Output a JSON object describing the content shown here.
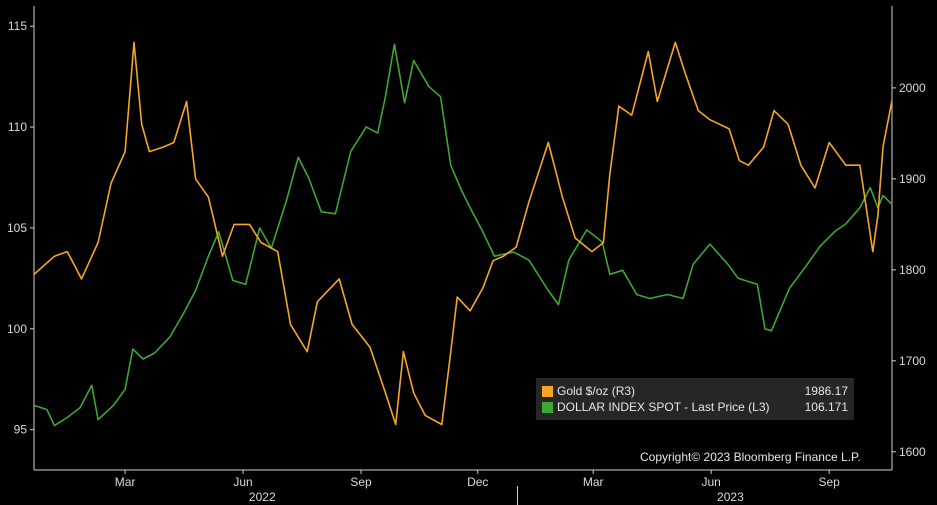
{
  "chart_data": {
    "type": "line",
    "x_start": "2021-12-20",
    "x_end": "2023-10-20",
    "left_axis": {
      "ylim": [
        93,
        116
      ],
      "ticks": [
        95,
        100,
        105,
        110,
        115
      ]
    },
    "right_axis": {
      "ylim": [
        1580,
        2090
      ],
      "ticks": [
        1600,
        1700,
        1800,
        1900,
        2000
      ]
    },
    "x_ticks": [
      {
        "label": "Mar",
        "date": "2022-03-01"
      },
      {
        "label": "Jun",
        "date": "2022-06-01"
      },
      {
        "label": "Sep",
        "date": "2022-09-01"
      },
      {
        "label": "Dec",
        "date": "2022-12-01"
      },
      {
        "label": "Mar",
        "date": "2023-03-01"
      },
      {
        "label": "Jun",
        "date": "2023-06-01"
      },
      {
        "label": "Sep",
        "date": "2023-09-01"
      }
    ],
    "years": [
      {
        "label": "2022",
        "date": "2022-06-16"
      },
      {
        "label": "2023",
        "date": "2023-06-16"
      }
    ],
    "series": [
      {
        "name": "Gold $/oz (R3)",
        "last_value": "1986.17",
        "axis": "right",
        "color": "#f5a623",
        "points": [
          [
            "2021-12-20",
            1795
          ],
          [
            "2022-01-05",
            1815
          ],
          [
            "2022-01-15",
            1820
          ],
          [
            "2022-01-26",
            1790
          ],
          [
            "2022-02-08",
            1830
          ],
          [
            "2022-02-18",
            1895
          ],
          [
            "2022-03-01",
            1930
          ],
          [
            "2022-03-08",
            2050
          ],
          [
            "2022-03-14",
            1960
          ],
          [
            "2022-03-20",
            1930
          ],
          [
            "2022-03-31",
            1935
          ],
          [
            "2022-04-08",
            1940
          ],
          [
            "2022-04-18",
            1985
          ],
          [
            "2022-04-25",
            1900
          ],
          [
            "2022-05-05",
            1880
          ],
          [
            "2022-05-16",
            1815
          ],
          [
            "2022-05-25",
            1850
          ],
          [
            "2022-06-06",
            1850
          ],
          [
            "2022-06-15",
            1830
          ],
          [
            "2022-06-28",
            1820
          ],
          [
            "2022-07-08",
            1740
          ],
          [
            "2022-07-21",
            1710
          ],
          [
            "2022-07-29",
            1765
          ],
          [
            "2022-08-15",
            1790
          ],
          [
            "2022-08-25",
            1740
          ],
          [
            "2022-09-08",
            1715
          ],
          [
            "2022-09-20",
            1665
          ],
          [
            "2022-09-28",
            1630
          ],
          [
            "2022-10-04",
            1710
          ],
          [
            "2022-10-12",
            1665
          ],
          [
            "2022-10-21",
            1640
          ],
          [
            "2022-11-03",
            1630
          ],
          [
            "2022-11-10",
            1710
          ],
          [
            "2022-11-15",
            1770
          ],
          [
            "2022-11-25",
            1755
          ],
          [
            "2022-12-05",
            1780
          ],
          [
            "2022-12-13",
            1810
          ],
          [
            "2022-12-21",
            1815
          ],
          [
            "2022-12-31",
            1825
          ],
          [
            "2023-01-10",
            1875
          ],
          [
            "2023-01-25",
            1940
          ],
          [
            "2023-02-05",
            1880
          ],
          [
            "2023-02-15",
            1835
          ],
          [
            "2023-02-28",
            1820
          ],
          [
            "2023-03-09",
            1830
          ],
          [
            "2023-03-14",
            1905
          ],
          [
            "2023-03-21",
            1980
          ],
          [
            "2023-03-31",
            1970
          ],
          [
            "2023-04-13",
            2040
          ],
          [
            "2023-04-20",
            1985
          ],
          [
            "2023-05-04",
            2050
          ],
          [
            "2023-05-12",
            2015
          ],
          [
            "2023-05-22",
            1975
          ],
          [
            "2023-05-31",
            1965
          ],
          [
            "2023-06-15",
            1955
          ],
          [
            "2023-06-23",
            1920
          ],
          [
            "2023-06-30",
            1915
          ],
          [
            "2023-07-12",
            1935
          ],
          [
            "2023-07-20",
            1975
          ],
          [
            "2023-07-31",
            1960
          ],
          [
            "2023-08-10",
            1915
          ],
          [
            "2023-08-21",
            1890
          ],
          [
            "2023-09-01",
            1940
          ],
          [
            "2023-09-14",
            1915
          ],
          [
            "2023-09-25",
            1915
          ],
          [
            "2023-10-05",
            1820
          ],
          [
            "2023-10-09",
            1860
          ],
          [
            "2023-10-13",
            1935
          ],
          [
            "2023-10-20",
            1986.17
          ]
        ]
      },
      {
        "name": "DOLLAR INDEX SPOT - Last Price (L3)",
        "last_value": "106.171",
        "axis": "left",
        "color": "#3fa535",
        "points": [
          [
            "2021-12-20",
            96.2
          ],
          [
            "2021-12-30",
            96.0
          ],
          [
            "2022-01-05",
            95.2
          ],
          [
            "2022-01-15",
            95.6
          ],
          [
            "2022-01-25",
            96.1
          ],
          [
            "2022-02-03",
            97.2
          ],
          [
            "2022-02-08",
            95.5
          ],
          [
            "2022-02-20",
            96.2
          ],
          [
            "2022-03-01",
            97.0
          ],
          [
            "2022-03-07",
            99.0
          ],
          [
            "2022-03-15",
            98.5
          ],
          [
            "2022-03-24",
            98.8
          ],
          [
            "2022-04-05",
            99.6
          ],
          [
            "2022-04-15",
            100.7
          ],
          [
            "2022-04-25",
            101.9
          ],
          [
            "2022-05-05",
            103.6
          ],
          [
            "2022-05-13",
            104.8
          ],
          [
            "2022-05-24",
            102.4
          ],
          [
            "2022-06-03",
            102.2
          ],
          [
            "2022-06-14",
            105.0
          ],
          [
            "2022-06-23",
            104.0
          ],
          [
            "2022-07-05",
            106.4
          ],
          [
            "2022-07-14",
            108.5
          ],
          [
            "2022-07-22",
            107.5
          ],
          [
            "2022-08-01",
            105.8
          ],
          [
            "2022-08-12",
            105.7
          ],
          [
            "2022-08-24",
            108.8
          ],
          [
            "2022-09-05",
            110.0
          ],
          [
            "2022-09-14",
            109.7
          ],
          [
            "2022-09-20",
            111.5
          ],
          [
            "2022-09-27",
            114.1
          ],
          [
            "2022-10-05",
            111.2
          ],
          [
            "2022-10-12",
            113.3
          ],
          [
            "2022-10-24",
            112.0
          ],
          [
            "2022-11-02",
            111.5
          ],
          [
            "2022-11-10",
            108.1
          ],
          [
            "2022-11-18",
            106.9
          ],
          [
            "2022-11-25",
            106.0
          ],
          [
            "2022-12-05",
            104.8
          ],
          [
            "2022-12-14",
            103.6
          ],
          [
            "2022-12-29",
            103.8
          ],
          [
            "2023-01-10",
            103.4
          ],
          [
            "2023-01-25",
            101.9
          ],
          [
            "2023-02-02",
            101.2
          ],
          [
            "2023-02-10",
            103.4
          ],
          [
            "2023-02-24",
            104.9
          ],
          [
            "2023-03-08",
            104.3
          ],
          [
            "2023-03-14",
            102.7
          ],
          [
            "2023-03-24",
            102.9
          ],
          [
            "2023-04-04",
            101.7
          ],
          [
            "2023-04-14",
            101.5
          ],
          [
            "2023-04-28",
            101.7
          ],
          [
            "2023-05-10",
            101.5
          ],
          [
            "2023-05-18",
            103.2
          ],
          [
            "2023-05-31",
            104.2
          ],
          [
            "2023-06-14",
            103.2
          ],
          [
            "2023-06-22",
            102.5
          ],
          [
            "2023-07-07",
            102.2
          ],
          [
            "2023-07-13",
            100.0
          ],
          [
            "2023-07-18",
            99.9
          ],
          [
            "2023-08-01",
            102.0
          ],
          [
            "2023-08-15",
            103.2
          ],
          [
            "2023-08-25",
            104.1
          ],
          [
            "2023-09-05",
            104.8
          ],
          [
            "2023-09-14",
            105.2
          ],
          [
            "2023-09-25",
            106.0
          ],
          [
            "2023-10-03",
            107.0
          ],
          [
            "2023-10-09",
            106.0
          ],
          [
            "2023-10-13",
            106.6
          ],
          [
            "2023-10-20",
            106.171
          ]
        ]
      }
    ]
  },
  "legend": {
    "gold_label": "Gold $/oz (R3)",
    "gold_value": "1986.17",
    "dxy_label": "DOLLAR INDEX SPOT - Last Price (L3)",
    "dxy_value": "106.171"
  },
  "copyright": "Copyright© 2023 Bloomberg Finance L.P."
}
